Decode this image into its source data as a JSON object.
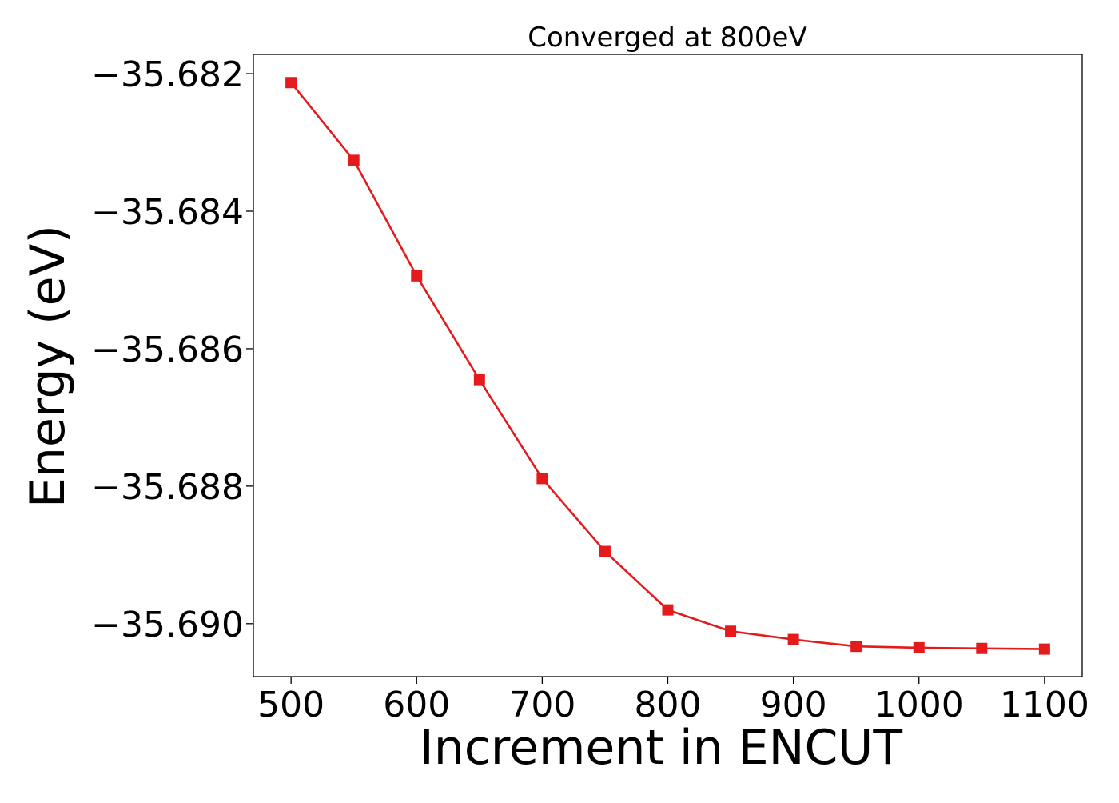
{
  "chart_data": {
    "type": "line",
    "title": "Converged at 800eV",
    "xlabel": "Increment in ENCUT",
    "ylabel": "Energy (eV)",
    "x": [
      500,
      550,
      600,
      650,
      700,
      750,
      800,
      850,
      900,
      950,
      1000,
      1050,
      1100
    ],
    "series": [
      {
        "values": [
          -35.68213,
          -35.68326,
          -35.68494,
          -35.68645,
          -35.68789,
          -35.68895,
          -35.6898,
          -35.69011,
          -35.69023,
          -35.69033,
          -35.69035,
          -35.69036,
          -35.69037
        ],
        "color": "#e41a1c",
        "marker": "square"
      }
    ],
    "xticks": [
      500,
      600,
      700,
      800,
      900,
      1000,
      1100
    ],
    "xtick_labels": [
      "500",
      "600",
      "700",
      "800",
      "900",
      "1000",
      "1100"
    ],
    "yticks": [
      -35.682,
      -35.684,
      -35.686,
      -35.688,
      -35.69
    ],
    "ytick_labels": [
      "−35.682",
      "−35.684",
      "−35.686",
      "−35.688",
      "−35.690"
    ],
    "xlim": [
      470,
      1130
    ],
    "ylim": [
      -35.69077,
      -35.68172
    ],
    "grid": false,
    "legend": "none"
  }
}
